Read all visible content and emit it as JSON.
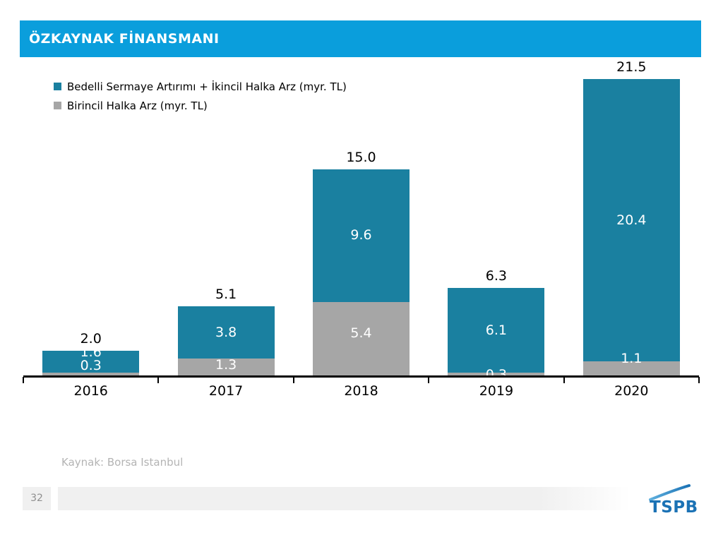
{
  "slide": {
    "title": "ÖZKAYNAK FİNANSMANI",
    "source_note": "Kaynak: Borsa Istanbul",
    "page_number": "32",
    "logo_text": "TSPB"
  },
  "colors": {
    "title_bar": "#0a9edc",
    "series_primary": "#1a80a0",
    "series_secondary": "#a6a6a6",
    "axis": "#000000",
    "label_light": "#ffffff",
    "label_dark": "#000000",
    "source_text": "#b4b4b4",
    "footer_bar": "#f0f0f0",
    "page_number_text": "#8f8f8f",
    "logo_blue": "#1b72b5",
    "logo_light_blue": "#5fb0de"
  },
  "chart_data": {
    "type": "bar",
    "stacked": true,
    "categories": [
      "2016",
      "2017",
      "2018",
      "2019",
      "2020"
    ],
    "series": [
      {
        "name": "Bedelli Sermaye Artırımı + İkincil Halka Arz (myr. TL)",
        "color_key": "series_primary",
        "values": [
          1.6,
          3.8,
          9.6,
          6.1,
          20.4
        ],
        "labels": [
          "1.6",
          "3.8",
          "9.6",
          "6.1",
          "20.4"
        ]
      },
      {
        "name": "Birincil Halka Arz (myr. TL)",
        "color_key": "series_secondary",
        "values": [
          0.3,
          1.3,
          5.4,
          0.3,
          1.1
        ],
        "labels": [
          "0.3",
          "1.3",
          "5.4",
          "0.3",
          "1.1"
        ]
      }
    ],
    "totals": [
      2.0,
      5.1,
      15.0,
      6.3,
      21.5
    ],
    "total_labels": [
      "2.0",
      "5.1",
      "15.0",
      "6.3",
      "21.5"
    ],
    "title": "",
    "xlabel": "",
    "ylabel": "",
    "ylim": [
      0,
      22.5
    ],
    "grid": false,
    "legend_position": "top-left",
    "label_dy": [
      [
        -13,
        0,
        0,
        0,
        0
      ],
      [
        -13,
        -4,
        -8,
        0,
        -15
      ]
    ]
  }
}
